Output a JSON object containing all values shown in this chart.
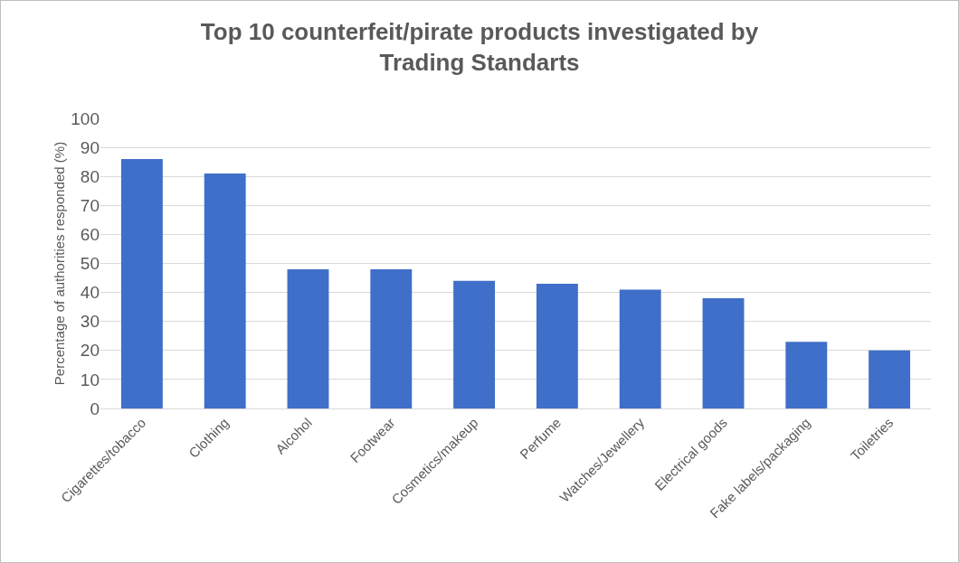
{
  "chart_data": {
    "type": "bar",
    "title": "Top 10 counterfeit/pirate products investigated by\nTrading Standarts",
    "ylabel": "Percentage of authorities responded (%)",
    "categories": [
      "Cigarettes/tobacco",
      "Clothing",
      "Alcohol",
      "Footwear",
      "Cosmetics/makeup",
      "Perfume",
      "Watches/Jewellery",
      "Electrical goods",
      "Fake labels/packaging",
      "Toiletries"
    ],
    "values": [
      86,
      81,
      48,
      48,
      44,
      43,
      41,
      38,
      23,
      20
    ],
    "color": "#3f6fc8",
    "ylim": [
      0,
      100
    ],
    "yticks": [
      0,
      10,
      20,
      30,
      40,
      50,
      60,
      70,
      80,
      90,
      100
    ],
    "grid": "y"
  }
}
